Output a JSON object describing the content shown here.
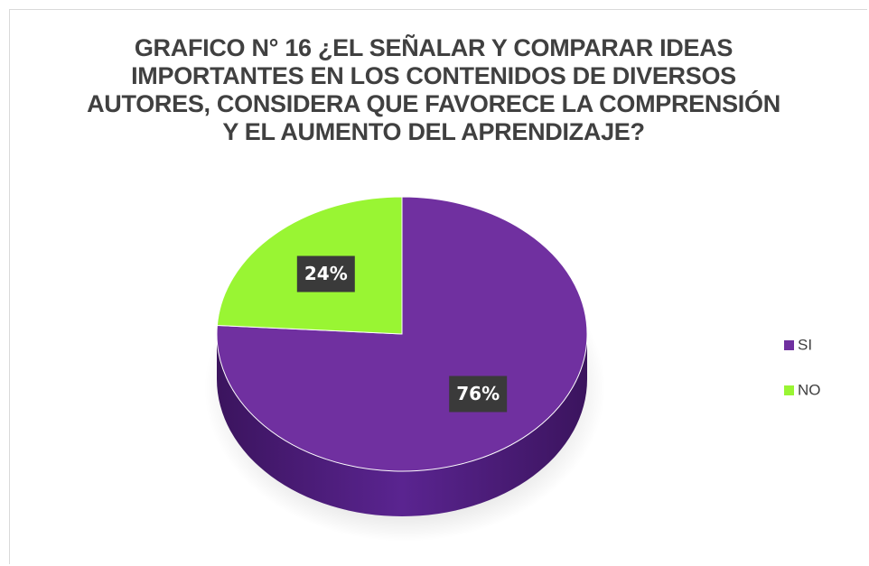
{
  "chart_data": {
    "type": "pie",
    "title": "GRAFICO N° 16 ¿EL SEÑALAR Y COMPARAR IDEAS IMPORTANTES EN LOS CONTENIDOS DE DIVERSOS AUTORES, CONSIDERA QUE FAVORECE LA COMPRENSIÓN Y EL AUMENTO DEL APRENDIZAJE?",
    "categories": [
      "SI",
      "NO"
    ],
    "values": [
      76,
      24
    ],
    "value_labels": [
      "76%",
      "24%"
    ],
    "colors": [
      "#7030a0",
      "#99f533"
    ],
    "legend": "right"
  }
}
